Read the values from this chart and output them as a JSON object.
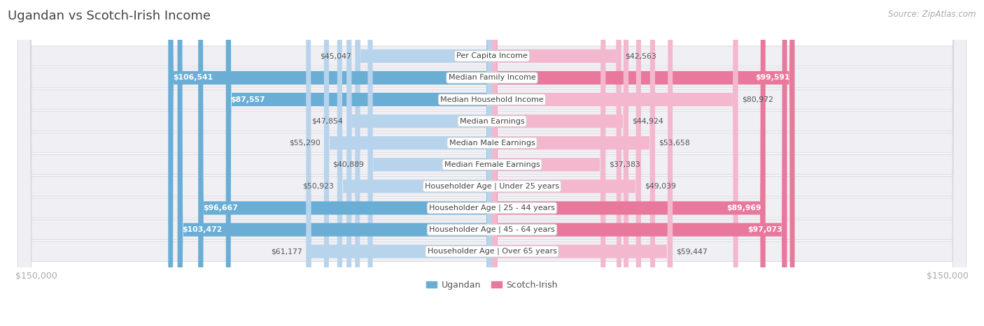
{
  "title": "Ugandan vs Scotch-Irish Income",
  "source": "Source: ZipAtlas.com",
  "categories": [
    "Per Capita Income",
    "Median Family Income",
    "Median Household Income",
    "Median Earnings",
    "Median Male Earnings",
    "Median Female Earnings",
    "Householder Age | Under 25 years",
    "Householder Age | 25 - 44 years",
    "Householder Age | 45 - 64 years",
    "Householder Age | Over 65 years"
  ],
  "ugandan": [
    45047,
    106541,
    87557,
    47854,
    55290,
    40889,
    50923,
    96667,
    103472,
    61177
  ],
  "scotch_irish": [
    42563,
    99591,
    80972,
    44924,
    53658,
    37383,
    49039,
    89969,
    97073,
    59447
  ],
  "max_val": 150000,
  "bar_height": 0.62,
  "ugandan_light": "#b8d4ec",
  "ugandan_strong": "#6aaed6",
  "scotch_irish_light": "#f4b8ce",
  "scotch_irish_strong": "#e8789c",
  "bg_color": "#ffffff",
  "row_color": "#f0f0f4",
  "row_border_color": "#d8d8e0",
  "label_bg": "#ffffff",
  "label_border": "#cccccc",
  "axis_color": "#aaaaaa",
  "title_color": "#444444",
  "source_color": "#aaaaaa",
  "value_color_dark": "#555555",
  "value_color_white": "#ffffff",
  "strong_threshold": 0.58
}
